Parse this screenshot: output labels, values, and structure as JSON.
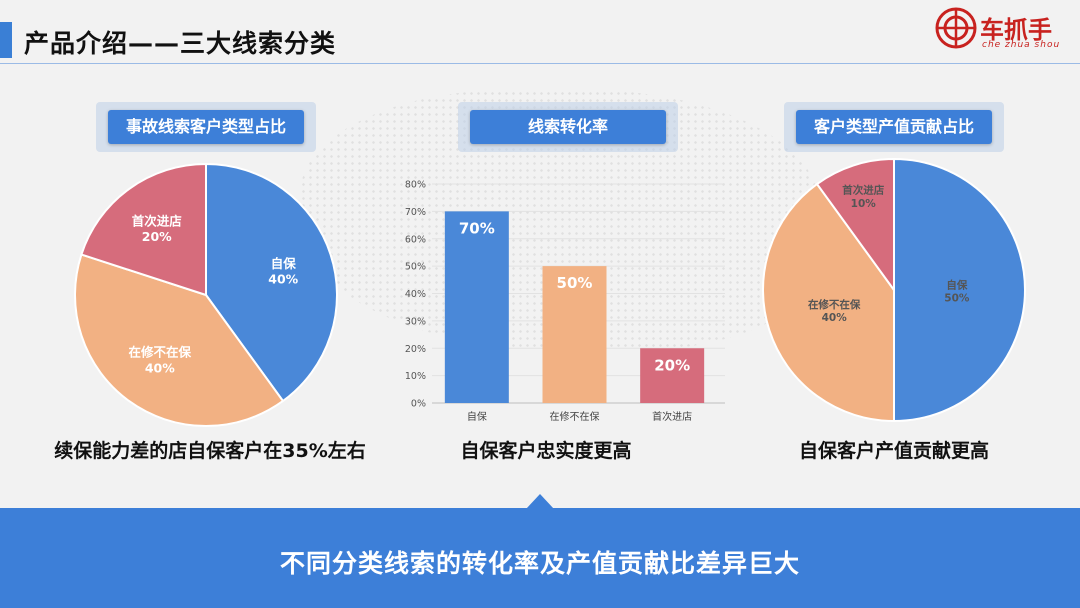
{
  "header": {
    "title": "产品介绍——三大线索分类",
    "logo_name": "车抓手",
    "logo_sub": "che zhua shou"
  },
  "colors": {
    "blue": "#4a88d8",
    "orange": "#f2b183",
    "rose": "#d66c7c",
    "accent": "#3d7fd8"
  },
  "chart_data": [
    {
      "type": "pie",
      "title": "事故线索客户类型占比",
      "slices": [
        {
          "label": "自保",
          "value": 40,
          "value_label": "40%",
          "color": "#4a88d8"
        },
        {
          "label": "在修不在保",
          "value": 40,
          "value_label": "40%",
          "color": "#f2b183"
        },
        {
          "label": "首次进店",
          "value": 20,
          "value_label": "20%",
          "color": "#d66c7c"
        }
      ],
      "caption": "续保能力差的店自保客户在35%左右"
    },
    {
      "type": "bar",
      "title": "线索转化率",
      "categories": [
        "自保",
        "在修不在保",
        "首次进店"
      ],
      "values": [
        70,
        50,
        20
      ],
      "value_labels": [
        "70%",
        "50%",
        "20%"
      ],
      "colors": [
        "#4a88d8",
        "#f2b183",
        "#d66c7c"
      ],
      "ylim": [
        0,
        80
      ],
      "yticks": [
        "0%",
        "10%",
        "20%",
        "30%",
        "40%",
        "50%",
        "60%",
        "70%",
        "80%"
      ],
      "grid": true,
      "caption": "自保客户忠实度更高"
    },
    {
      "type": "pie",
      "title": "客户类型产值贡献占比",
      "slices": [
        {
          "label": "自保",
          "value": 50,
          "value_label": "50%",
          "color": "#4a88d8"
        },
        {
          "label": "在修不在保",
          "value": 40,
          "value_label": "40%",
          "color": "#f2b183"
        },
        {
          "label": "首次进店",
          "value": 10,
          "value_label": "10%",
          "color": "#d66c7c"
        }
      ],
      "caption": "自保客户产值贡献更高"
    }
  ],
  "footer": {
    "text": "不同分类线索的转化率及产值贡献比差异巨大"
  }
}
